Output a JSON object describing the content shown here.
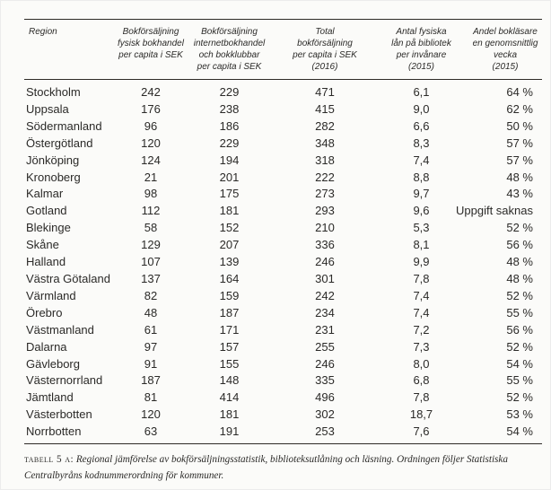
{
  "page": {
    "background": "#fbfbf9",
    "text_color": "#2b2a28",
    "rule_color": "#2e2b27"
  },
  "table": {
    "columns": [
      {
        "id": "region",
        "lines": [
          "Region"
        ]
      },
      {
        "id": "fysisk",
        "lines": [
          "Bokförsäljning",
          "fysisk bokhandel",
          "per capita i SEK"
        ]
      },
      {
        "id": "internet",
        "lines": [
          "Bokförsäljning",
          "internetbokhandel",
          "och bokklubbar",
          "per capita i SEK"
        ]
      },
      {
        "id": "total",
        "lines": [
          "Total",
          "bokförsäljning",
          "per capita i SEK",
          "(2016)"
        ]
      },
      {
        "id": "lan",
        "lines": [
          "Antal fysiska",
          "lån på bibliotek",
          "per invånare",
          "(2015)"
        ]
      },
      {
        "id": "laesare",
        "lines": [
          "Andel bokläsare",
          "en genomsnittlig",
          "vecka",
          "(2015)"
        ]
      }
    ],
    "rows": [
      [
        "Stockholm",
        "242",
        "229",
        "471",
        "6,1",
        "64 %"
      ],
      [
        "Uppsala",
        "176",
        "238",
        "415",
        "9,0",
        "62 %"
      ],
      [
        "Södermanland",
        "96",
        "186",
        "282",
        "6,6",
        "50 %"
      ],
      [
        "Östergötland",
        "120",
        "229",
        "348",
        "8,3",
        "57 %"
      ],
      [
        "Jönköping",
        "124",
        "194",
        "318",
        "7,4",
        "57 %"
      ],
      [
        "Kronoberg",
        "21",
        "201",
        "222",
        "8,8",
        "48 %"
      ],
      [
        "Kalmar",
        "98",
        "175",
        "273",
        "9,7",
        "43 %"
      ],
      [
        "Gotland",
        "112",
        "181",
        "293",
        "9,6",
        "Uppgift saknas"
      ],
      [
        "Blekinge",
        "58",
        "152",
        "210",
        "5,3",
        "52 %"
      ],
      [
        "Skåne",
        "129",
        "207",
        "336",
        "8,1",
        "56 %"
      ],
      [
        "Halland",
        "107",
        "139",
        "246",
        "9,9",
        "48 %"
      ],
      [
        "Västra Götaland",
        "137",
        "164",
        "301",
        "7,8",
        "48 %"
      ],
      [
        "Värmland",
        "82",
        "159",
        "242",
        "7,4",
        "52 %"
      ],
      [
        "Örebro",
        "48",
        "187",
        "234",
        "7,4",
        "55 %"
      ],
      [
        "Västmanland",
        "61",
        "171",
        "231",
        "7,2",
        "56 %"
      ],
      [
        "Dalarna",
        "97",
        "157",
        "255",
        "7,3",
        "52 %"
      ],
      [
        "Gävleborg",
        "91",
        "155",
        "246",
        "8,0",
        "54 %"
      ],
      [
        "Västernorrland",
        "187",
        "148",
        "335",
        "6,8",
        "55 %"
      ],
      [
        "Jämtland",
        "81",
        "414",
        "496",
        "7,8",
        "52 %"
      ],
      [
        "Västerbotten",
        "120",
        "181",
        "302",
        "18,7",
        "53 %"
      ],
      [
        "Norrbotten",
        "63",
        "191",
        "253",
        "7,6",
        "54 %"
      ]
    ]
  },
  "caption": {
    "label": "tabell 5 a:",
    "line1": "Regional jämförelse av bokförsäljningsstatistik, biblioteksutlåning och läsning. Ordningen följer Statistiska",
    "line2": "Centralbyråns kodnummerordning för kommuner."
  }
}
